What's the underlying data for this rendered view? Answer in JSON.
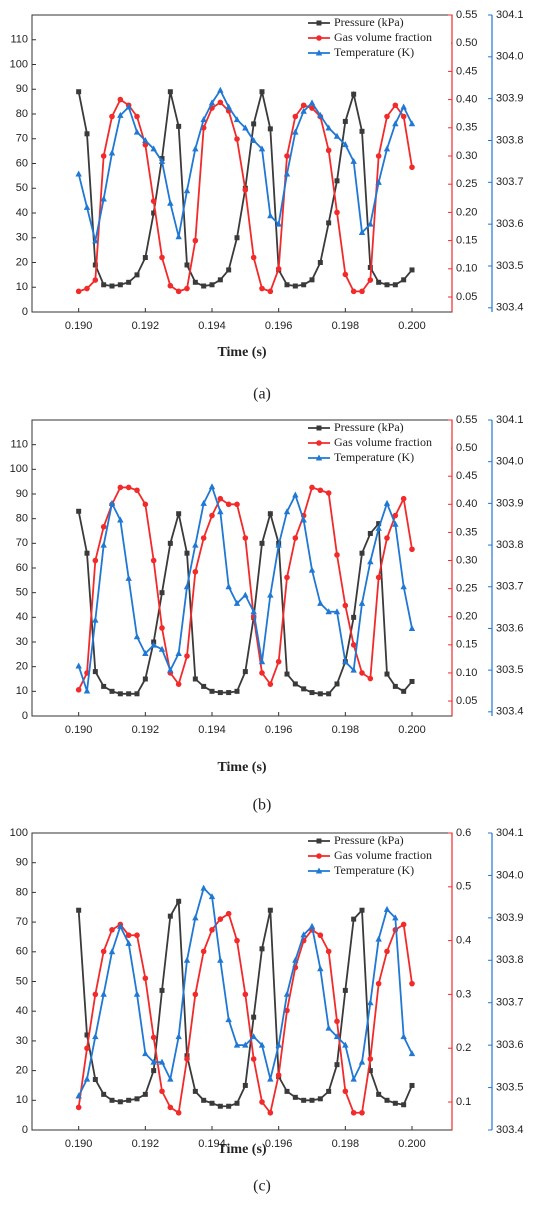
{
  "chart_data": [
    {
      "type": "line",
      "caption": "(a)",
      "xlabel": "Time (s)",
      "x": [
        0.19,
        0.19025,
        0.1905,
        0.19075,
        0.191,
        0.19125,
        0.1915,
        0.19175,
        0.192,
        0.19225,
        0.1925,
        0.19275,
        0.193,
        0.19325,
        0.1935,
        0.19375,
        0.194,
        0.19425,
        0.1945,
        0.19475,
        0.195,
        0.19525,
        0.1955,
        0.19575,
        0.196,
        0.19625,
        0.1965,
        0.19675,
        0.197,
        0.19725,
        0.1975,
        0.19775,
        0.198,
        0.19825,
        0.1985,
        0.19875,
        0.199,
        0.19925,
        0.1995,
        0.19975,
        0.2
      ],
      "xlim": [
        0.1886,
        0.2012
      ],
      "xticks": [
        {
          "value": 0.19,
          "label": "0.190"
        },
        {
          "value": 0.192,
          "label": "0.192"
        },
        {
          "value": 0.194,
          "label": "0.194"
        },
        {
          "value": 0.196,
          "label": "0.196"
        },
        {
          "value": 0.198,
          "label": "0.198"
        },
        {
          "value": 0.2,
          "label": "0.200"
        }
      ],
      "ylim": [
        0,
        120
      ],
      "yticks": [
        0,
        10,
        20,
        30,
        40,
        50,
        60,
        70,
        80,
        90,
        100,
        110
      ],
      "y2lim": [
        0.0234,
        0.55
      ],
      "y2ticks": [
        {
          "value": 0.05,
          "label": "0.05"
        },
        {
          "value": 0.1,
          "label": "0.10"
        },
        0.15,
        {
          "value": 0.2,
          "label": "0.20"
        },
        0.25,
        {
          "value": 0.3,
          "label": "0.30"
        },
        0.35,
        {
          "value": 0.4,
          "label": "0.40"
        },
        0.45,
        {
          "value": 0.5,
          "label": "0.50"
        },
        0.55
      ],
      "y3lim": [
        303.39,
        304.1
      ],
      "y3ticks": [
        303.4,
        303.5,
        303.6,
        303.7,
        303.8,
        303.9,
        {
          "value": 304.0,
          "label": "304.0"
        },
        304.1
      ],
      "series": [
        {
          "name": "Pressure (kPa)",
          "color": "#3a3a3a",
          "marker": "square",
          "values": [
            89,
            72,
            19,
            11,
            10.5,
            11,
            12,
            15,
            22,
            40,
            62,
            89,
            75,
            19,
            12,
            10.5,
            11,
            13,
            17,
            30,
            50,
            76,
            89,
            74,
            17,
            11,
            10.5,
            11,
            13,
            20,
            36,
            53,
            77,
            88,
            73,
            18,
            12,
            11,
            11,
            13,
            17
          ]
        },
        {
          "name": "Gas volume fraction",
          "color": "#f22a2a",
          "marker": "circle",
          "axis": "y2",
          "values": [
            0.06,
            0.065,
            0.08,
            0.3,
            0.37,
            0.4,
            0.39,
            0.37,
            0.32,
            0.22,
            0.12,
            0.07,
            0.06,
            0.065,
            0.15,
            0.35,
            0.385,
            0.395,
            0.38,
            0.33,
            0.24,
            0.12,
            0.065,
            0.06,
            0.1,
            0.3,
            0.37,
            0.39,
            0.385,
            0.37,
            0.31,
            0.2,
            0.09,
            0.06,
            0.06,
            0.08,
            0.3,
            0.37,
            0.39,
            0.37,
            0.28
          ]
        },
        {
          "name": "Temperature (K)",
          "color": "#1f78d4",
          "marker": "triangle",
          "axis": "y3",
          "values": [
            303.72,
            303.64,
            303.56,
            303.66,
            303.77,
            303.86,
            303.88,
            303.82,
            303.8,
            303.78,
            303.75,
            303.65,
            303.57,
            303.68,
            303.78,
            303.85,
            303.89,
            303.92,
            303.88,
            303.85,
            303.83,
            303.8,
            303.78,
            303.62,
            303.6,
            303.72,
            303.82,
            303.87,
            303.89,
            303.86,
            303.83,
            303.81,
            303.79,
            303.75,
            303.58,
            303.6,
            303.7,
            303.78,
            303.84,
            303.88,
            303.84
          ]
        }
      ]
    },
    {
      "type": "line",
      "caption": "(b)",
      "xlabel": "Time (s)",
      "x": [
        0.19,
        0.19025,
        0.1905,
        0.19075,
        0.191,
        0.19125,
        0.1915,
        0.19175,
        0.192,
        0.19225,
        0.1925,
        0.19275,
        0.193,
        0.19325,
        0.1935,
        0.19375,
        0.194,
        0.19425,
        0.1945,
        0.19475,
        0.195,
        0.19525,
        0.1955,
        0.19575,
        0.196,
        0.19625,
        0.1965,
        0.19675,
        0.197,
        0.19725,
        0.1975,
        0.19775,
        0.198,
        0.19825,
        0.1985,
        0.19875,
        0.199,
        0.19925,
        0.1995,
        0.19975,
        0.2
      ],
      "xlim": [
        0.1886,
        0.2012
      ],
      "xticks": [
        {
          "value": 0.19,
          "label": "0.190"
        },
        {
          "value": 0.192,
          "label": "0.192"
        },
        {
          "value": 0.194,
          "label": "0.194"
        },
        {
          "value": 0.196,
          "label": "0.196"
        },
        {
          "value": 0.198,
          "label": "0.198"
        },
        {
          "value": 0.2,
          "label": "0.200"
        }
      ],
      "ylim": [
        0,
        120
      ],
      "yticks": [
        0,
        10,
        20,
        30,
        40,
        50,
        60,
        70,
        80,
        90,
        100,
        110
      ],
      "y2lim": [
        0.0234,
        0.55
      ],
      "y2ticks": [
        {
          "value": 0.05,
          "label": "0.05"
        },
        {
          "value": 0.1,
          "label": "0.10"
        },
        0.15,
        {
          "value": 0.2,
          "label": "0.20"
        },
        0.25,
        {
          "value": 0.3,
          "label": "0.30"
        },
        0.35,
        {
          "value": 0.4,
          "label": "0.40"
        },
        0.45,
        {
          "value": 0.5,
          "label": "0.50"
        },
        0.55
      ],
      "y3lim": [
        303.39,
        304.1
      ],
      "y3ticks": [
        303.4,
        303.5,
        303.6,
        303.7,
        303.8,
        303.9,
        {
          "value": 304.0,
          "label": "304.0"
        },
        304.1
      ],
      "series": [
        {
          "name": "Pressure (kPa)",
          "color": "#3a3a3a",
          "marker": "square",
          "values": [
            83,
            66,
            18,
            12,
            10,
            9,
            9,
            9,
            15,
            30,
            50,
            70,
            82,
            66,
            15,
            12,
            10,
            9.5,
            9.5,
            10,
            18,
            40,
            70,
            82,
            70,
            17,
            13,
            11,
            9.5,
            9,
            9,
            13,
            22,
            40,
            66,
            74,
            78,
            17,
            12,
            10,
            14
          ]
        },
        {
          "name": "Gas volume fraction",
          "color": "#f22a2a",
          "marker": "circle",
          "axis": "y2",
          "values": [
            0.07,
            0.1,
            0.3,
            0.36,
            0.4,
            0.43,
            0.43,
            0.425,
            0.4,
            0.3,
            0.18,
            0.1,
            0.08,
            0.13,
            0.28,
            0.34,
            0.38,
            0.41,
            0.4,
            0.4,
            0.34,
            0.2,
            0.1,
            0.08,
            0.12,
            0.27,
            0.34,
            0.38,
            0.43,
            0.425,
            0.42,
            0.31,
            0.22,
            0.15,
            0.1,
            0.09,
            0.27,
            0.34,
            0.38,
            0.41,
            0.32
          ]
        },
        {
          "name": "Temperature (K)",
          "color": "#1f78d4",
          "marker": "triangle",
          "axis": "y3",
          "values": [
            303.51,
            303.45,
            303.62,
            303.8,
            303.9,
            303.86,
            303.72,
            303.58,
            303.54,
            303.56,
            303.55,
            303.5,
            303.54,
            303.7,
            303.8,
            303.9,
            303.94,
            303.88,
            303.7,
            303.66,
            303.68,
            303.64,
            303.52,
            303.68,
            303.8,
            303.88,
            303.92,
            303.86,
            303.74,
            303.66,
            303.64,
            303.64,
            303.52,
            303.5,
            303.66,
            303.76,
            303.84,
            303.9,
            303.85,
            303.7,
            303.6
          ]
        }
      ]
    },
    {
      "type": "line",
      "caption": "(c)",
      "xlabel": "Time (s)",
      "x": [
        0.19,
        0.19025,
        0.1905,
        0.19075,
        0.191,
        0.19125,
        0.1915,
        0.19175,
        0.192,
        0.19225,
        0.1925,
        0.19275,
        0.193,
        0.19325,
        0.1935,
        0.19375,
        0.194,
        0.19425,
        0.1945,
        0.19475,
        0.195,
        0.19525,
        0.1955,
        0.19575,
        0.196,
        0.19625,
        0.1965,
        0.19675,
        0.197,
        0.19725,
        0.1975,
        0.19775,
        0.198,
        0.19825,
        0.1985,
        0.19875,
        0.199,
        0.19925,
        0.1995,
        0.19975,
        0.2
      ],
      "xlim": [
        0.1886,
        0.2012
      ],
      "xticks": [
        {
          "value": 0.19,
          "label": "0.190"
        },
        {
          "value": 0.192,
          "label": "0.192"
        },
        {
          "value": 0.194,
          "label": "0.194"
        },
        {
          "value": 0.196,
          "label": "0.196"
        },
        {
          "value": 0.198,
          "label": "0.198"
        },
        {
          "value": 0.2,
          "label": "0.200"
        }
      ],
      "ylim": [
        0,
        100
      ],
      "yticks": [
        0,
        10,
        20,
        30,
        40,
        50,
        60,
        70,
        80,
        90,
        100
      ],
      "y2lim": [
        0.048,
        0.6
      ],
      "y2ticks": [
        0.1,
        0.2,
        0.3,
        0.4,
        0.5,
        0.6
      ],
      "y3lim": [
        303.4,
        304.1
      ],
      "y3ticks": [
        303.4,
        303.5,
        303.6,
        303.7,
        303.8,
        303.9,
        {
          "value": 304.0,
          "label": "304.0"
        },
        304.1
      ],
      "series": [
        {
          "name": "Pressure (kPa)",
          "color": "#3a3a3a",
          "marker": "square",
          "values": [
            74,
            32,
            17,
            12,
            10,
            9.5,
            10,
            10.5,
            12,
            20,
            47,
            72,
            77,
            25,
            13,
            10,
            9,
            8,
            8,
            9,
            15,
            38,
            61,
            74,
            18,
            13,
            11,
            10,
            10,
            10.5,
            13,
            22,
            47,
            71,
            74,
            20,
            12,
            10,
            9,
            8.5,
            15
          ]
        },
        {
          "name": "Gas volume fraction",
          "color": "#f22a2a",
          "marker": "circle",
          "axis": "y2",
          "values": [
            0.09,
            0.2,
            0.3,
            0.38,
            0.42,
            0.43,
            0.41,
            0.41,
            0.33,
            0.22,
            0.12,
            0.09,
            0.08,
            0.18,
            0.3,
            0.38,
            0.42,
            0.44,
            0.45,
            0.4,
            0.3,
            0.18,
            0.1,
            0.08,
            0.15,
            0.27,
            0.35,
            0.4,
            0.42,
            0.41,
            0.38,
            0.25,
            0.12,
            0.08,
            0.08,
            0.18,
            0.32,
            0.38,
            0.42,
            0.43,
            0.32
          ]
        },
        {
          "name": "Temperature (K)",
          "color": "#1f78d4",
          "marker": "triangle",
          "axis": "y3",
          "values": [
            303.48,
            303.52,
            303.62,
            303.72,
            303.82,
            303.88,
            303.84,
            303.72,
            303.58,
            303.56,
            303.56,
            303.52,
            303.62,
            303.8,
            303.9,
            303.97,
            303.95,
            303.8,
            303.66,
            303.6,
            303.6,
            303.62,
            303.6,
            303.52,
            303.6,
            303.72,
            303.8,
            303.86,
            303.88,
            303.78,
            303.64,
            303.62,
            303.6,
            303.52,
            303.56,
            303.7,
            303.85,
            303.92,
            303.9,
            303.62,
            303.58
          ]
        }
      ]
    }
  ]
}
